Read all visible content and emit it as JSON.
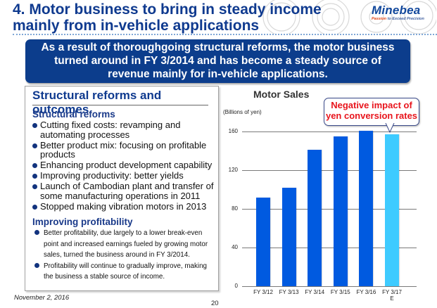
{
  "header": {
    "title_line1": "4. Motor business to bring in steady income",
    "title_line2": "mainly from in-vehicle applications",
    "logo_word": "Minebea",
    "logo_tag_accent": "Passion",
    "logo_tag_rest": " to Exceed Precision"
  },
  "banner": {
    "line1": "As a result of thoroughgoing structural reforms, the motor business",
    "line2": "turned around in FY 3/2014 and has become a steady source of",
    "line3": "revenue mainly for in-vehicle applications."
  },
  "left_box": {
    "title": "Structural reforms and outcomes",
    "section1_heading": "Structural reforms",
    "section1_items": [
      "Cutting fixed costs: revamping and automating processes",
      "Better product mix: focusing on profitable products",
      "Enhancing product development capability",
      "Improving productivity: better yields",
      "Launch of Cambodian plant and transfer of some manufacturing operations in 2011",
      "Stopped making vibration motors in 2013"
    ],
    "section2_heading": "Improving profitability",
    "section2_items": [
      "Better profitability, due largely to a lower break-even point and increased earnings fueled by growing motor sales, turned the business around in FY 3/2014.",
      "Profitability will continue to gradually improve, making the business a stable source of income."
    ]
  },
  "footer": {
    "date": "November 2, 2016",
    "page": "20"
  },
  "chart_data": {
    "type": "bar",
    "title": "Motor Sales",
    "ylabel": "(Billions of yen)",
    "xlabel": "",
    "categories": [
      "FY 3/12",
      "FY 3/13",
      "FY 3/14",
      "FY 3/15",
      "FY 3/16",
      "FY 3/17 E"
    ],
    "category_lines": [
      [
        "FY 3/12"
      ],
      [
        "FY 3/13"
      ],
      [
        "FY 3/14"
      ],
      [
        "FY 3/15"
      ],
      [
        "FY 3/16"
      ],
      [
        "FY 3/17",
        "E"
      ]
    ],
    "values": [
      92,
      102,
      141,
      155,
      161,
      157
    ],
    "bar_colors": [
      "#005ae0",
      "#005ae0",
      "#005ae0",
      "#005ae0",
      "#005ae0",
      "#3ecbff"
    ],
    "yticks": [
      "0",
      "40",
      "80",
      "120",
      "160"
    ],
    "ylim": [
      0,
      170
    ],
    "grid": true,
    "legend": null,
    "annotation": {
      "line1": "Negative impact of",
      "line2": "yen conversion rates",
      "target": "FY 3/17 E",
      "color": "#e8141c"
    }
  }
}
